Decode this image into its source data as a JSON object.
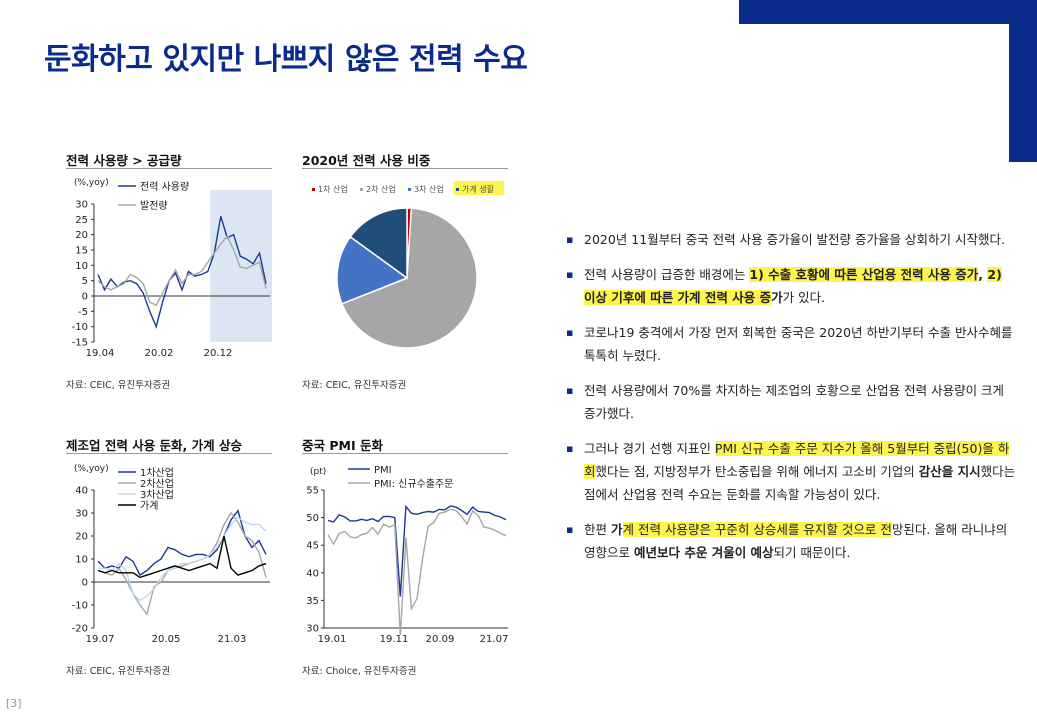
{
  "page": {
    "title": "둔화하고 있지만 나쁘지 않은 전력 수요",
    "page_number": "[3]",
    "colors": {
      "brand": "#0a2a8c",
      "highlight": "#fff34d"
    }
  },
  "charts": {
    "c1": {
      "title": "전력 사용량 > 공급량",
      "source": "자료: CEIC, 유진투자증권"
    },
    "c2": {
      "title": "2020년 전력 사용 비중",
      "source": "자료: CEIC, 유진투자증권"
    },
    "c3": {
      "title": "제조업 전력 사용 둔화, 가계 상승",
      "source": "자료: CEIC, 유진투자증권"
    },
    "c4": {
      "title": "중국 PMI 둔화",
      "source": "자료: Choice, 유진투자증권"
    }
  },
  "chart_data": [
    {
      "type": "line",
      "title": "전력 사용량 > 공급량",
      "unit_label": "(%,yoy)",
      "ylim": [
        -15,
        30
      ],
      "yticks": [
        30,
        25,
        20,
        15,
        10,
        5,
        0,
        -5,
        -10,
        -15
      ],
      "xtick_labels": [
        "19.04",
        "20.02",
        "20.12"
      ],
      "highlight_range": "20.12–21.07",
      "series": [
        {
          "name": "전력 사용량",
          "color": "#1a3a8f",
          "values": [
            7,
            2,
            5.5,
            3,
            4.5,
            5,
            4,
            1,
            -5,
            -10,
            -2,
            5,
            7.5,
            2,
            8,
            6.5,
            7,
            8,
            14,
            26,
            19,
            20,
            13,
            12,
            10.5,
            14,
            4
          ]
        },
        {
          "name": "발전량",
          "color": "#a6a6a6",
          "values": [
            5,
            3,
            2,
            3,
            4,
            7,
            6,
            4,
            -2,
            -3,
            1,
            5,
            8.5,
            4,
            7,
            7,
            8,
            11,
            14,
            17,
            19.5,
            15,
            9.5,
            9,
            10,
            11,
            2.5
          ]
        }
      ]
    },
    {
      "type": "pie",
      "title": "2020년 전력 사용 비중",
      "legend": [
        "1차 산업",
        "2차 산업",
        "3차 산업",
        "가계 생활"
      ],
      "colors": [
        "#c00000",
        "#a6a6a6",
        "#4472c4",
        "#1f4e79"
      ],
      "values": [
        1,
        68,
        16,
        15
      ]
    },
    {
      "type": "line",
      "title": "제조업 전력 사용 둔화, 가계 상승",
      "unit_label": "(%,yoy)",
      "ylim": [
        -20,
        40
      ],
      "yticks": [
        40,
        30,
        20,
        10,
        0,
        -10,
        -20
      ],
      "xtick_labels": [
        "19.07",
        "20.05",
        "21.03"
      ],
      "series": [
        {
          "name": "1차산업",
          "color": "#1a3a8f",
          "values": [
            9,
            6,
            7,
            6,
            11,
            9,
            3,
            5,
            8,
            10,
            15,
            14,
            12,
            11,
            12,
            12,
            11,
            14,
            20,
            27,
            31,
            20,
            15,
            18,
            12
          ]
        },
        {
          "name": "2차산업",
          "color": "#a6a6a6",
          "values": [
            5,
            4,
            3,
            6,
            1,
            -5,
            -10,
            -14,
            -2,
            0,
            5,
            6,
            7,
            8,
            9,
            10,
            12,
            17,
            25,
            30,
            26,
            20,
            18,
            13,
            2
          ]
        },
        {
          "name": "3차산업",
          "color": "#bdd7ee",
          "values": [
            6,
            6,
            5,
            8,
            5,
            -5,
            -8,
            -6,
            -3,
            2,
            5,
            6,
            8,
            8,
            9,
            10,
            12,
            15,
            20,
            25,
            28,
            26,
            25,
            25,
            22
          ]
        },
        {
          "name": "가계",
          "color": "#000000",
          "values": [
            5,
            4,
            5,
            4,
            4,
            4,
            2,
            3,
            4,
            5,
            6,
            7,
            6,
            5,
            6,
            7,
            8,
            6,
            20,
            6,
            3,
            4,
            5,
            7,
            8
          ]
        }
      ]
    },
    {
      "type": "line",
      "title": "중국 PMI 둔화",
      "unit_label": "(pt)",
      "ylim": [
        30,
        55
      ],
      "yticks": [
        55,
        50,
        45,
        40,
        35,
        30
      ],
      "xtick_labels": [
        "19.01",
        "19.11",
        "20.09",
        "21.07"
      ],
      "series": [
        {
          "name": "PMI",
          "color": "#1a3a8f",
          "values": [
            49.5,
            49.2,
            50.5,
            50.1,
            49.4,
            49.4,
            49.7,
            49.5,
            49.8,
            49.3,
            50.2,
            50.2,
            50,
            35.7,
            52,
            50.8,
            50.6,
            50.9,
            51.1,
            51,
            51.5,
            51.4,
            52.1,
            51.9,
            51.3,
            50.6,
            51.9,
            51.1,
            51,
            50.9,
            50.4,
            50.1,
            49.6
          ]
        },
        {
          "name": "PMI: 신규수출주문",
          "color": "#a6a6a6",
          "values": [
            46.9,
            45.2,
            47.1,
            47.5,
            46.5,
            46.3,
            46.9,
            47.2,
            48.2,
            47,
            48.8,
            48.3,
            48.7,
            28.7,
            46.4,
            33.5,
            35.3,
            42.6,
            48.4,
            49.1,
            50.8,
            51,
            51.5,
            51.3,
            50.2,
            48.8,
            51.2,
            50.4,
            48.3,
            48.1,
            47.7,
            47.2,
            46.7
          ]
        }
      ]
    }
  ],
  "bullets": [
    [
      {
        "t": "2020년 11월부터 중국 전력 사용 증가율이 발전량 증가율을 상회하기 시작했다."
      }
    ],
    [
      {
        "t": "전력 사용량이 급증한 배경에는 "
      },
      {
        "t": "1) 수출 호황에 따른 산업용 전력 사용 증가",
        "hl": true,
        "b": true
      },
      {
        "t": ", ",
        "b": true
      },
      {
        "t": "2) 이상 기후에 따른 가계 전력 사용 증",
        "hl": true,
        "b": true
      },
      {
        "t": "가",
        "b": true
      },
      {
        "t": "가 있다."
      }
    ],
    [
      {
        "t": "코로나19 충격에서 가장 먼저 회복한 중국은 2020년 하반기부터 수출 반사수혜를 톡톡히 누렸다."
      }
    ],
    [
      {
        "t": "전력 사용량에서 70%를 차지하는 제조업의 호황으로 산업용 전력 사용량이 크게 증가했다."
      }
    ],
    [
      {
        "t": "그러나 경기 선행 지표인 "
      },
      {
        "t": "PMI 신규 수출 주문 지수가 올해 5월부터 중립(50)을 하회",
        "hl": true
      },
      {
        "t": "했다는 점, 지방정부가 탄소중립을 위해 에너지 고소비 기업의 "
      },
      {
        "t": "감산을 지시",
        "b": true
      },
      {
        "t": "했다는 점에서 산업용 전력 수요는 둔화를 지속할 가능성이 있다."
      }
    ],
    [
      {
        "t": "한편 "
      },
      {
        "t": "가",
        "b": true
      },
      {
        "t": "계 전력 사용량은 꾸준히 상승세를 유지할 것으로 전",
        "hl": true
      },
      {
        "t": "망된다. 올해 라니냐의 영향으로 "
      },
      {
        "t": "예년보다 추운 겨울이 예상",
        "b": true
      },
      {
        "t": "되기 때문이다."
      }
    ]
  ]
}
